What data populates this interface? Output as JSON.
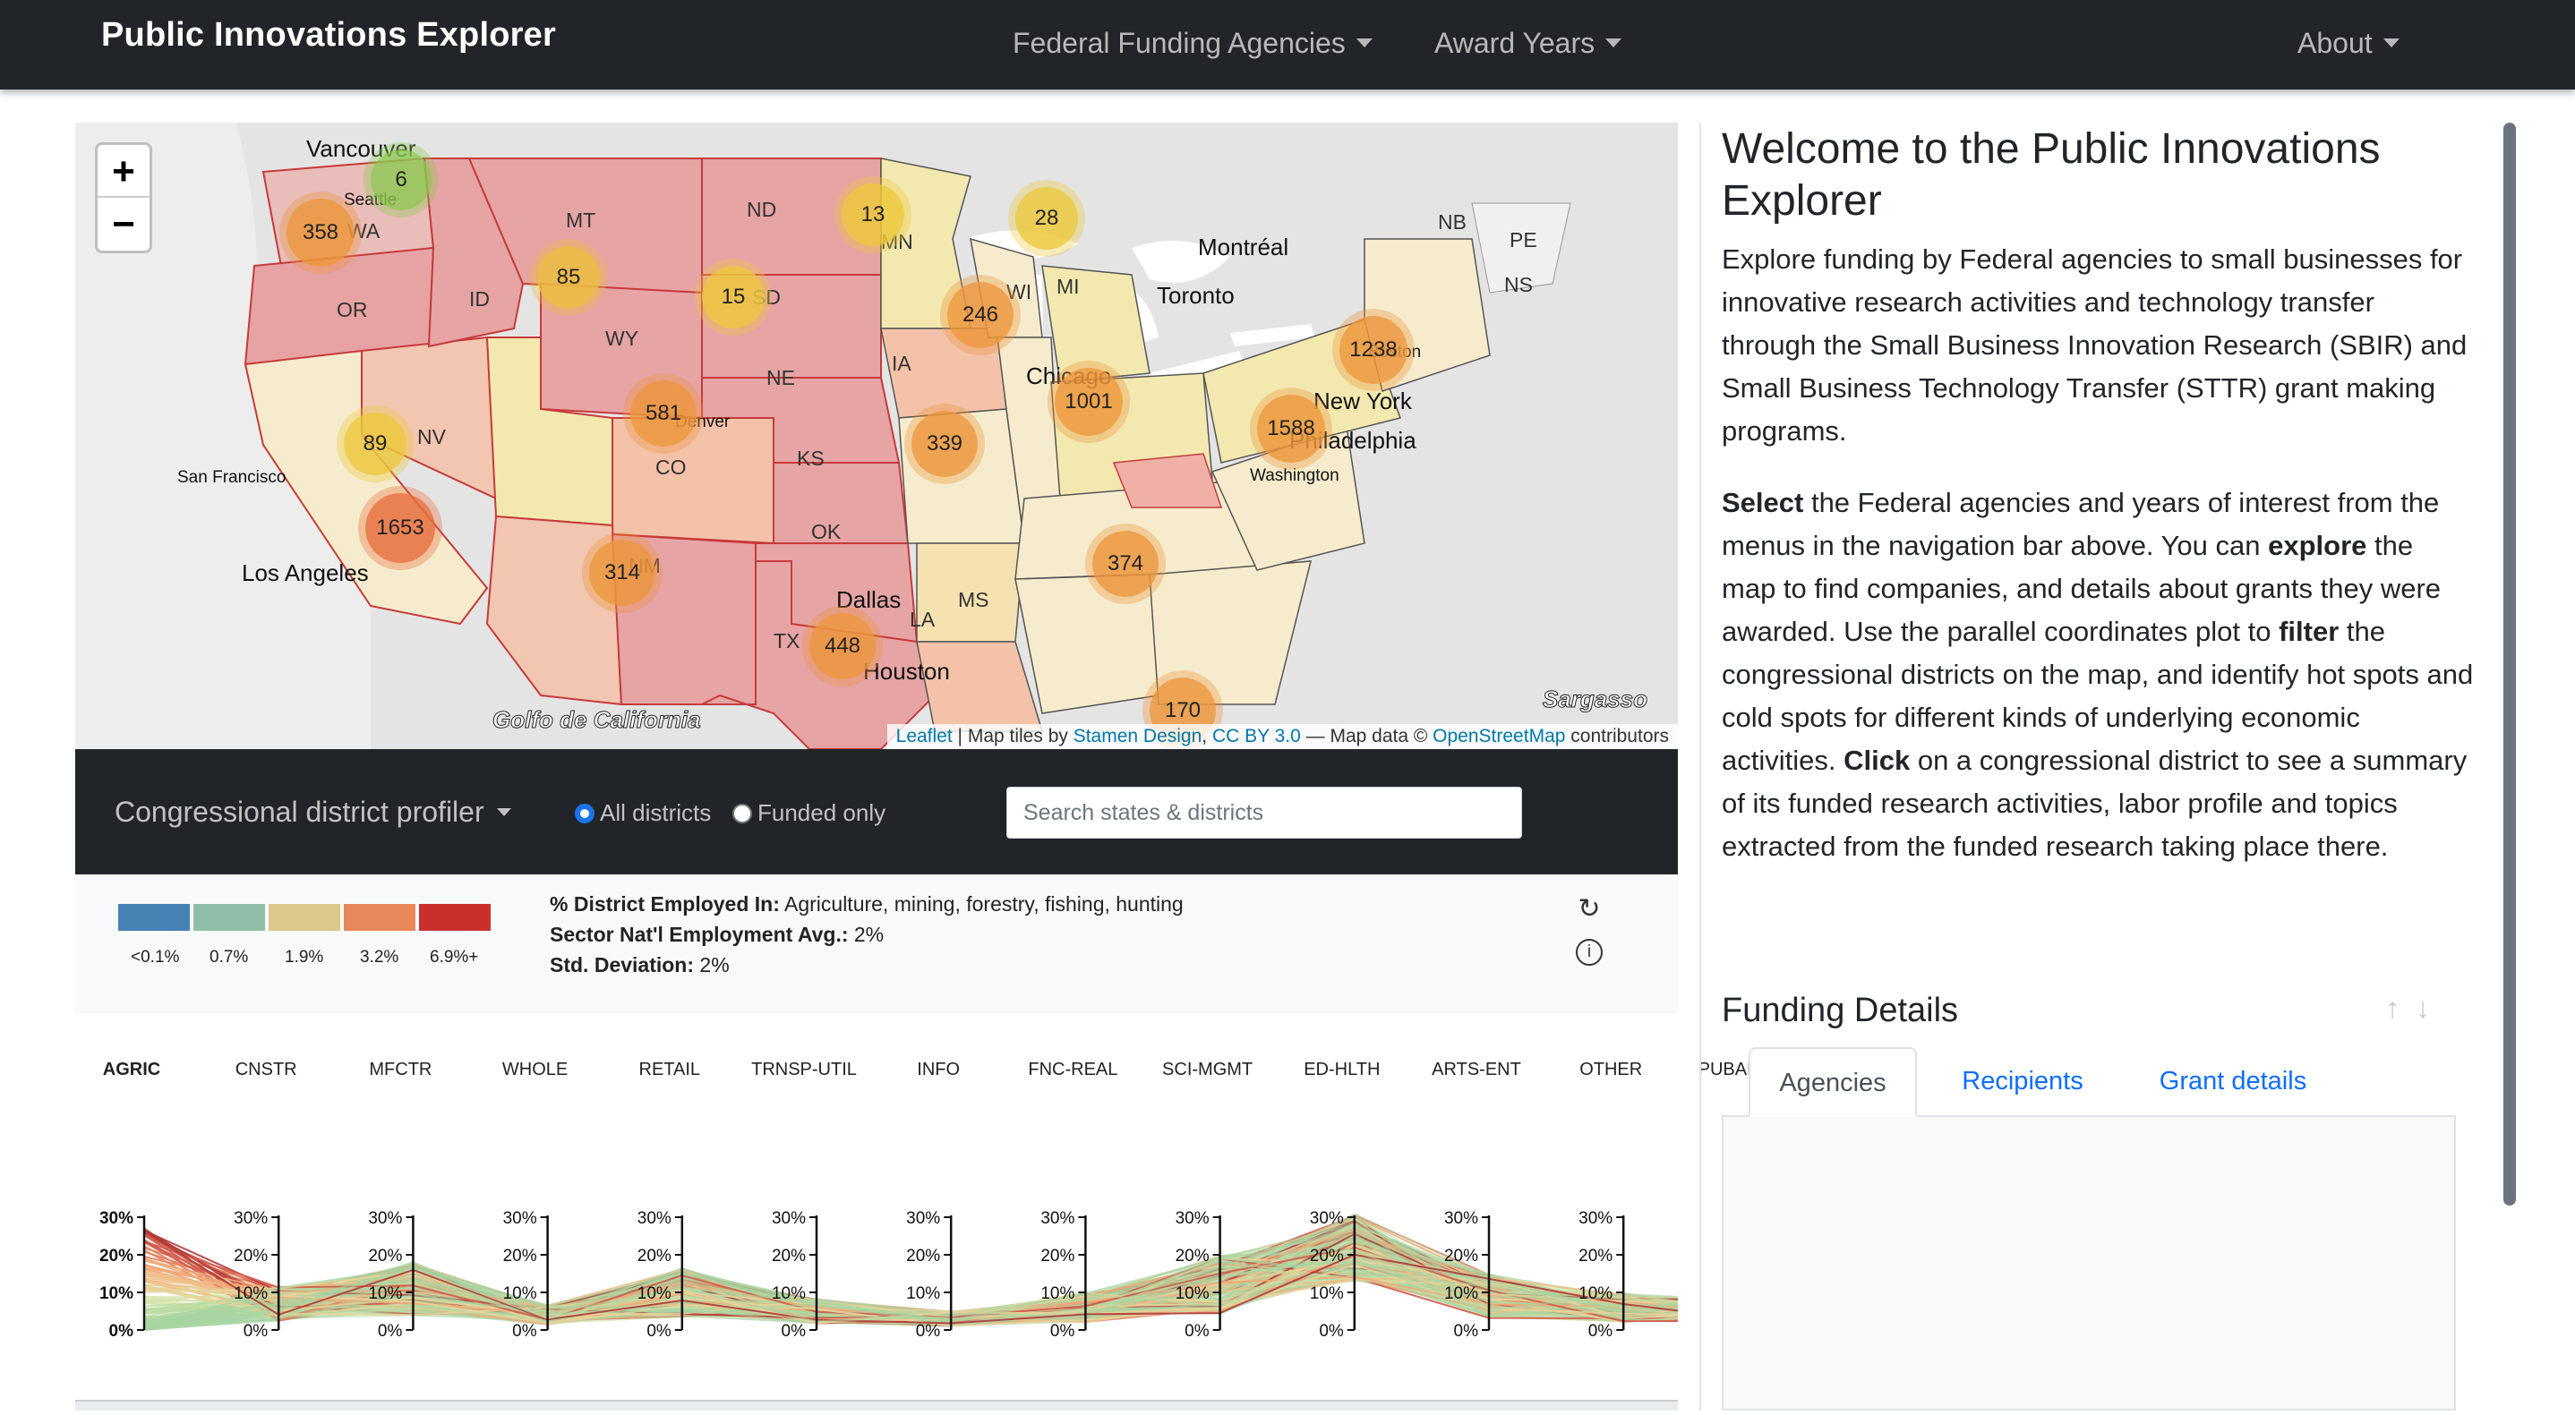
{
  "navbar": {
    "brand": "Public Innovations Explorer",
    "menu": [
      "Federal Funding Agencies",
      "Award Years"
    ],
    "about": "About"
  },
  "map": {
    "zoom_in": "+",
    "zoom_out": "−",
    "cities": [
      "Vancouver",
      "Seattle",
      "Montréal",
      "Toronto",
      "Boston",
      "New York",
      "Philadelphia",
      "Washington",
      "San Francisco",
      "Los Angeles",
      "Denver",
      "Chicago",
      "Dallas",
      "Houston"
    ],
    "states": [
      "WA",
      "MT",
      "ND",
      "OR",
      "ID",
      "SD",
      "WY",
      "NE",
      "NV",
      "CO",
      "KS",
      "IA",
      "MN",
      "WI",
      "MI",
      "NM",
      "OK",
      "TX",
      "LA",
      "MS",
      "NB",
      "PE",
      "NS"
    ],
    "clusters": [
      "6",
      "358",
      "85",
      "13",
      "28",
      "15",
      "246",
      "1238",
      "581",
      "1001",
      "1588",
      "89",
      "339",
      "1653",
      "314",
      "374",
      "448",
      "170"
    ],
    "gulf_label": "Golfo de California",
    "tiles_label": "Sargasso",
    "attribution": {
      "leaflet": "Leaflet",
      "tiles_text": " | Map tiles by ",
      "stamen": "Stamen Design",
      "comma": ", ",
      "cc": "CC BY 3.0",
      "data_text": " — Map data © ",
      "osm": "OpenStreetMap",
      "contrib": " contributors"
    }
  },
  "profiler": {
    "title": "Congressional district profiler",
    "radio_all": "All districts",
    "radio_funded": "Funded only",
    "search_placeholder": "Search states & districts"
  },
  "legend": {
    "colors": [
      "#4682b4",
      "#8fbfa8",
      "#dcc98a",
      "#e8875a",
      "#c9302c"
    ],
    "labels": [
      "<0.1%",
      "0.7%",
      "1.9%",
      "3.2%",
      "6.9%+"
    ]
  },
  "info": {
    "line1_key": "% District Employed In:",
    "line1_val": " Agriculture, mining, forestry, fishing, hunting",
    "line2_key": "Sector Nat'l Employment Avg.:",
    "line2_val": " 2%",
    "line3_key": "Std. Deviation:",
    "line3_val": " 2%",
    "reset_icon_glyph": "↻",
    "info_icon_glyph": "i"
  },
  "parallel": {
    "axes": [
      "AGRIC",
      "CNSTR",
      "MFCTR",
      "WHOLE",
      "RETAIL",
      "TRNSP-UTIL",
      "INFO",
      "FNC-REAL",
      "SCI-MGMT",
      "ED-HLTH",
      "ARTS-ENT",
      "OTHER",
      "PUBADMIN"
    ],
    "ticks": [
      "30%",
      "20%",
      "10%",
      "0%"
    ]
  },
  "welcome": {
    "title": "Welcome to the Public Innovations Explorer",
    "intro": "Explore funding by Federal agencies to small businesses for innovative research activities and technology transfer through the Small Business Innovation Research (SBIR) and Small Business Technology Transfer (STTR) grant making programs.",
    "p2": [
      {
        "b": "Select"
      },
      {
        "t": " the Federal agencies and years of interest from the menus in the navigation bar above. You can "
      },
      {
        "b": "explore"
      },
      {
        "t": " the map to find companies, and details about grants they were awarded. Use the parallel coordinates plot to "
      },
      {
        "b": "filter"
      },
      {
        "t": " the congressional districts on the map, and identify hot spots and cold spots for different kinds of underlying economic activities. "
      },
      {
        "b": "Click"
      },
      {
        "t": " on a congressional district to see a summary of its funded research activities, labor profile and topics extracted from the funded research taking place there."
      }
    ]
  },
  "funding": {
    "title": "Funding Details",
    "sort_up": "↑",
    "sort_down": "↓",
    "tabs": [
      "Agencies",
      "Recipients",
      "Grant details"
    ]
  }
}
